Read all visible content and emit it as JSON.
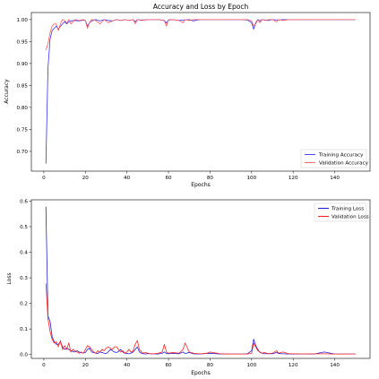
{
  "chart_data": [
    {
      "type": "line",
      "title": "Accuracy and Loss by Epoch",
      "xlabel": "Epochs",
      "ylabel": "Accuracy",
      "xlim": [
        -6,
        157
      ],
      "ylim": [
        0.655,
        1.016
      ],
      "xticks": [
        0,
        20,
        40,
        60,
        80,
        100,
        120,
        140
      ],
      "yticks": [
        0.7,
        0.75,
        0.8,
        0.85,
        0.9,
        0.95,
        1.0
      ],
      "ytick_labels": [
        "0.70",
        "0.75",
        "0.80",
        "0.85",
        "0.90",
        "0.95",
        "1.00"
      ],
      "legend": "lower-right",
      "series": [
        {
          "name": "Training Accuracy",
          "color": "#3333ff",
          "x": [
            1,
            2,
            3,
            4,
            5,
            6,
            7,
            8,
            9,
            10,
            11,
            12,
            13,
            15,
            17,
            19,
            20,
            21,
            22,
            23,
            25,
            27,
            29,
            31,
            33,
            35,
            37,
            39,
            41,
            43,
            44,
            45,
            47,
            50,
            55,
            58,
            59,
            60,
            62,
            65,
            67,
            70,
            72,
            75,
            80,
            85,
            90,
            95,
            98,
            100,
            101,
            102,
            103,
            104,
            105,
            108,
            110,
            113,
            115,
            118,
            120,
            125,
            130,
            135,
            140,
            145,
            150
          ],
          "y": [
            0.672,
            0.89,
            0.955,
            0.975,
            0.98,
            0.985,
            0.978,
            0.985,
            0.99,
            0.995,
            0.99,
            0.995,
            0.997,
            0.998,
            0.997,
            0.999,
            0.998,
            0.985,
            0.993,
            0.997,
            1.0,
            0.997,
            1.0,
            0.998,
            0.997,
            1.0,
            0.998,
            1.0,
            0.998,
            1.0,
            0.995,
            1.0,
            0.999,
            1.0,
            1.0,
            0.998,
            0.992,
            0.999,
            1.0,
            0.998,
            0.999,
            1.0,
            0.997,
            1.0,
            1.0,
            1.0,
            1.0,
            1.0,
            0.999,
            0.993,
            0.978,
            0.993,
            1.0,
            0.997,
            1.0,
            0.998,
            1.0,
            0.999,
            1.0,
            1.0,
            1.0,
            1.0,
            1.0,
            1.0,
            1.0,
            1.0,
            1.0
          ]
        },
        {
          "name": "Validation Accuracy",
          "color": "#ff5555",
          "x": [
            1,
            2,
            3,
            4,
            5,
            6,
            7,
            8,
            9,
            10,
            11,
            12,
            13,
            14,
            15,
            17,
            19,
            20,
            21,
            22,
            23,
            25,
            27,
            29,
            31,
            33,
            35,
            37,
            39,
            41,
            43,
            44,
            45,
            47,
            50,
            55,
            58,
            59,
            60,
            62,
            65,
            67,
            68,
            70,
            72,
            75,
            80,
            85,
            90,
            95,
            98,
            100,
            101,
            102,
            103,
            104,
            105,
            107,
            108,
            110,
            112,
            113,
            115,
            118,
            120,
            125,
            130,
            135,
            140,
            145,
            150
          ],
          "y": [
            0.93,
            0.945,
            0.97,
            0.985,
            0.99,
            0.99,
            0.975,
            0.99,
            1.0,
            0.998,
            0.992,
            1.0,
            0.99,
            0.995,
            1.0,
            0.998,
            1.0,
            0.998,
            0.98,
            0.993,
            1.0,
            0.998,
            0.99,
            1.0,
            0.993,
            0.997,
            1.0,
            0.998,
            1.0,
            0.998,
            1.0,
            0.99,
            1.0,
            0.998,
            1.0,
            1.0,
            0.998,
            0.985,
            1.0,
            1.0,
            0.998,
            0.993,
            1.0,
            0.998,
            1.0,
            1.0,
            1.0,
            1.0,
            1.0,
            1.0,
            1.0,
            0.997,
            0.985,
            0.99,
            1.0,
            0.993,
            1.0,
            0.998,
            1.0,
            1.0,
            0.995,
            1.0,
            0.998,
            1.0,
            1.0,
            1.0,
            1.0,
            1.0,
            1.0,
            1.0,
            1.0
          ]
        }
      ]
    },
    {
      "type": "line",
      "title": "",
      "xlabel": "Epochs",
      "ylabel": "Loss",
      "xlim": [
        -6,
        157
      ],
      "ylim": [
        -0.015,
        0.605
      ],
      "xticks": [
        0,
        20,
        40,
        60,
        80,
        100,
        120,
        140
      ],
      "yticks": [
        0.0,
        0.1,
        0.2,
        0.3,
        0.4,
        0.5,
        0.6
      ],
      "ytick_labels": [
        "0.0",
        "0.1",
        "0.2",
        "0.3",
        "0.4",
        "0.5",
        "0.6"
      ],
      "legend": "upper-right",
      "series": [
        {
          "name": "Training Loss",
          "color": "#2222dd",
          "x": [
            1,
            2,
            3,
            4,
            5,
            6,
            7,
            8,
            9,
            10,
            11,
            12,
            13,
            14,
            15,
            16,
            17,
            18,
            19,
            20,
            21,
            22,
            23,
            24,
            25,
            26,
            27,
            28,
            29,
            30,
            31,
            32,
            33,
            34,
            35,
            36,
            37,
            38,
            39,
            40,
            41,
            42,
            43,
            44,
            45,
            46,
            47,
            48,
            49,
            50,
            52,
            55,
            57,
            58,
            59,
            60,
            62,
            65,
            67,
            68,
            70,
            72,
            75,
            78,
            80,
            85,
            90,
            95,
            98,
            100,
            101,
            102,
            103,
            104,
            105,
            106,
            108,
            110,
            112,
            113,
            115,
            118,
            120,
            125,
            130,
            135,
            140,
            145,
            150
          ],
          "y": [
            0.578,
            0.15,
            0.13,
            0.07,
            0.05,
            0.04,
            0.04,
            0.05,
            0.03,
            0.02,
            0.025,
            0.02,
            0.015,
            0.012,
            0.01,
            0.015,
            0.01,
            0.008,
            0.006,
            0.008,
            0.02,
            0.025,
            0.01,
            0.008,
            0.005,
            0.004,
            0.01,
            0.008,
            0.005,
            0.004,
            0.01,
            0.02,
            0.015,
            0.01,
            0.008,
            0.012,
            0.02,
            0.01,
            0.005,
            0.004,
            0.003,
            0.006,
            0.01,
            0.02,
            0.03,
            0.01,
            0.005,
            0.003,
            0.002,
            0.004,
            0.003,
            0.002,
            0.005,
            0.01,
            0.004,
            0.003,
            0.005,
            0.003,
            0.01,
            0.004,
            0.008,
            0.003,
            0.002,
            0.004,
            0.005,
            0.002,
            0.002,
            0.002,
            0.003,
            0.015,
            0.06,
            0.035,
            0.02,
            0.008,
            0.005,
            0.003,
            0.004,
            0.003,
            0.008,
            0.004,
            0.003,
            0.002,
            0.002,
            0.002,
            0.002,
            0.01,
            0.002,
            0.002,
            0.002
          ]
        },
        {
          "name": "Validation Loss",
          "color": "#ff2222",
          "x": [
            1,
            2,
            3,
            4,
            5,
            6,
            7,
            8,
            9,
            10,
            11,
            12,
            13,
            14,
            15,
            16,
            17,
            18,
            19,
            20,
            21,
            22,
            23,
            24,
            25,
            26,
            27,
            28,
            29,
            30,
            31,
            32,
            33,
            34,
            35,
            36,
            37,
            38,
            39,
            40,
            41,
            42,
            43,
            44,
            45,
            46,
            47,
            48,
            49,
            50,
            52,
            55,
            57,
            58,
            59,
            60,
            62,
            65,
            67,
            68,
            70,
            72,
            75,
            78,
            80,
            85,
            90,
            95,
            98,
            100,
            101,
            102,
            103,
            104,
            105,
            106,
            108,
            110,
            112,
            113,
            115,
            118,
            120,
            125,
            130,
            135,
            140,
            145,
            150
          ],
          "y": [
            0.278,
            0.14,
            0.09,
            0.06,
            0.045,
            0.05,
            0.03,
            0.055,
            0.02,
            0.035,
            0.02,
            0.045,
            0.01,
            0.02,
            0.015,
            0.01,
            0.005,
            0.01,
            0.005,
            0.02,
            0.035,
            0.03,
            0.02,
            0.01,
            0.005,
            0.015,
            0.01,
            0.02,
            0.015,
            0.025,
            0.03,
            0.025,
            0.02,
            0.03,
            0.03,
            0.02,
            0.01,
            0.015,
            0.005,
            0.01,
            0.02,
            0.01,
            0.015,
            0.04,
            0.055,
            0.02,
            0.01,
            0.005,
            0.008,
            0.005,
            0.002,
            0.005,
            0.01,
            0.04,
            0.01,
            0.005,
            0.008,
            0.005,
            0.02,
            0.045,
            0.01,
            0.005,
            0.003,
            0.004,
            0.01,
            0.003,
            0.002,
            0.002,
            0.002,
            0.005,
            0.045,
            0.03,
            0.015,
            0.01,
            0.005,
            0.008,
            0.003,
            0.005,
            0.015,
            0.005,
            0.01,
            0.003,
            0.003,
            0.002,
            0.003,
            0.003,
            0.002,
            0.002,
            0.002
          ]
        }
      ]
    }
  ]
}
